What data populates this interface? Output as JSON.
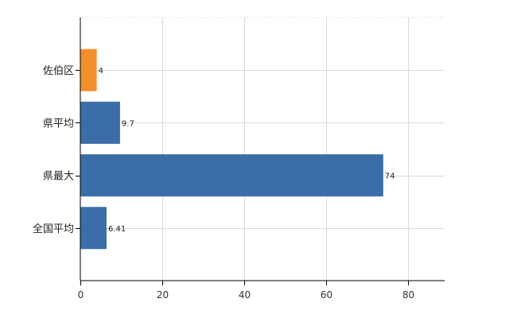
{
  "chart_data": {
    "type": "bar",
    "orientation": "horizontal",
    "categories": [
      "佐伯区",
      "県平均",
      "県最大",
      "全国平均"
    ],
    "values": [
      4,
      9.7,
      74,
      6.41
    ],
    "data_labels": [
      "4",
      "9.7",
      "74",
      "6.41"
    ],
    "bar_colors": [
      "#f28e2b",
      "#3b6ea8",
      "#3b6ea8",
      "#3b6ea8"
    ],
    "xlim": [
      0,
      89
    ],
    "xticks": [
      0,
      20,
      40,
      60,
      80
    ],
    "grid": true,
    "legend": "none"
  }
}
